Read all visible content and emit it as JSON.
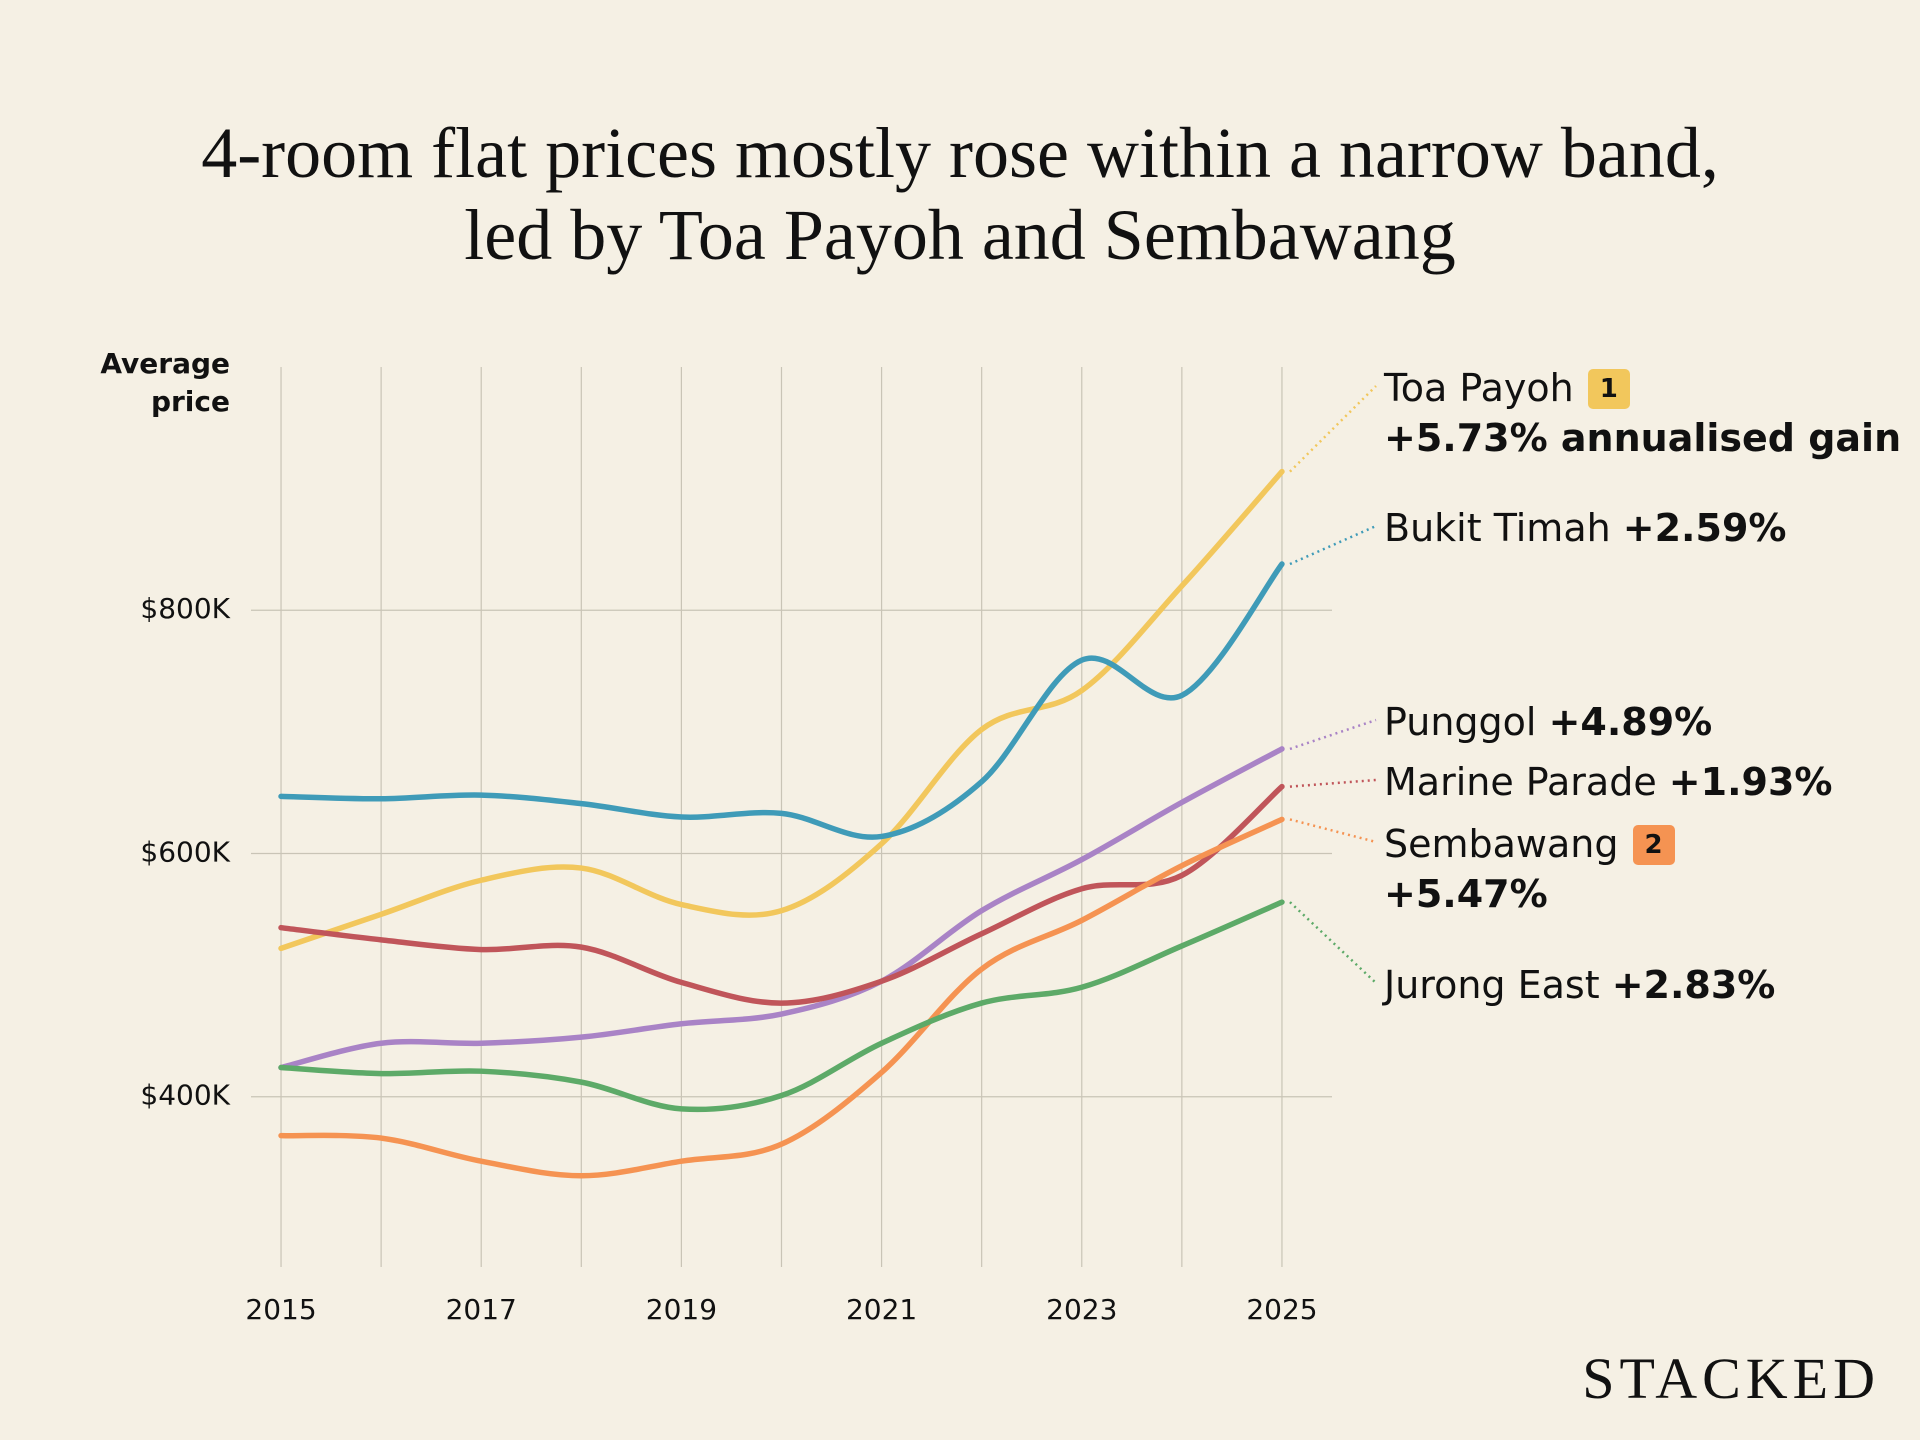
{
  "chart_data": {
    "type": "line",
    "title": [
      "4-room flat prices mostly rose within a narrow band,",
      "led by Toa Payoh and Sembawang"
    ],
    "y_label": "Average price",
    "brand": "STACKED",
    "x": [
      2015,
      2016,
      2017,
      2018,
      2019,
      2020,
      2021,
      2022,
      2023,
      2024,
      2025
    ],
    "xlim": [
      2014.7,
      2025.5
    ],
    "xticks": [
      2015,
      2017,
      2019,
      2021,
      2023,
      2025
    ],
    "ylim": [
      260000,
      1000000
    ],
    "yticks": [
      {
        "value": 400000,
        "label": "$400K"
      },
      {
        "value": 600000,
        "label": "$600K"
      },
      {
        "value": 800000,
        "label": "$800K"
      }
    ],
    "grid": true,
    "series": [
      {
        "name": "Toa Payoh",
        "badge": "1",
        "gain": "+5.73% annualised gain",
        "color": "#f2c75c",
        "values": [
          522000,
          550000,
          578000,
          588000,
          558000,
          553000,
          608000,
          702000,
          734000,
          820000,
          914000
        ]
      },
      {
        "name": "Bukit Timah",
        "gain": "+2.59%",
        "color": "#3f9bb8",
        "values": [
          647000,
          645000,
          648000,
          641000,
          630000,
          633000,
          614000,
          659000,
          759000,
          730000,
          838000
        ]
      },
      {
        "name": "Punggol",
        "gain": "+4.89%",
        "color": "#a983c6",
        "values": [
          424000,
          444000,
          444000,
          449000,
          460000,
          468000,
          495000,
          553000,
          595000,
          642000,
          686000
        ]
      },
      {
        "name": "Marine Parade",
        "gain": "+1.93%",
        "color": "#c0555a",
        "values": [
          539000,
          529000,
          521000,
          523000,
          494000,
          477000,
          495000,
          534000,
          571000,
          582000,
          655000
        ]
      },
      {
        "name": "Sembawang",
        "gain": "+5.47%",
        "badge": "2",
        "color": "#f59352",
        "values": [
          368000,
          366000,
          347000,
          335000,
          347000,
          361000,
          420000,
          505000,
          545000,
          590000,
          628000
        ]
      },
      {
        "name": "Jurong East",
        "gain": "+2.83%",
        "color": "#5daa68",
        "values": [
          424000,
          419000,
          421000,
          412000,
          390000,
          401000,
          444000,
          477000,
          490000,
          524000,
          560000
        ]
      }
    ]
  }
}
